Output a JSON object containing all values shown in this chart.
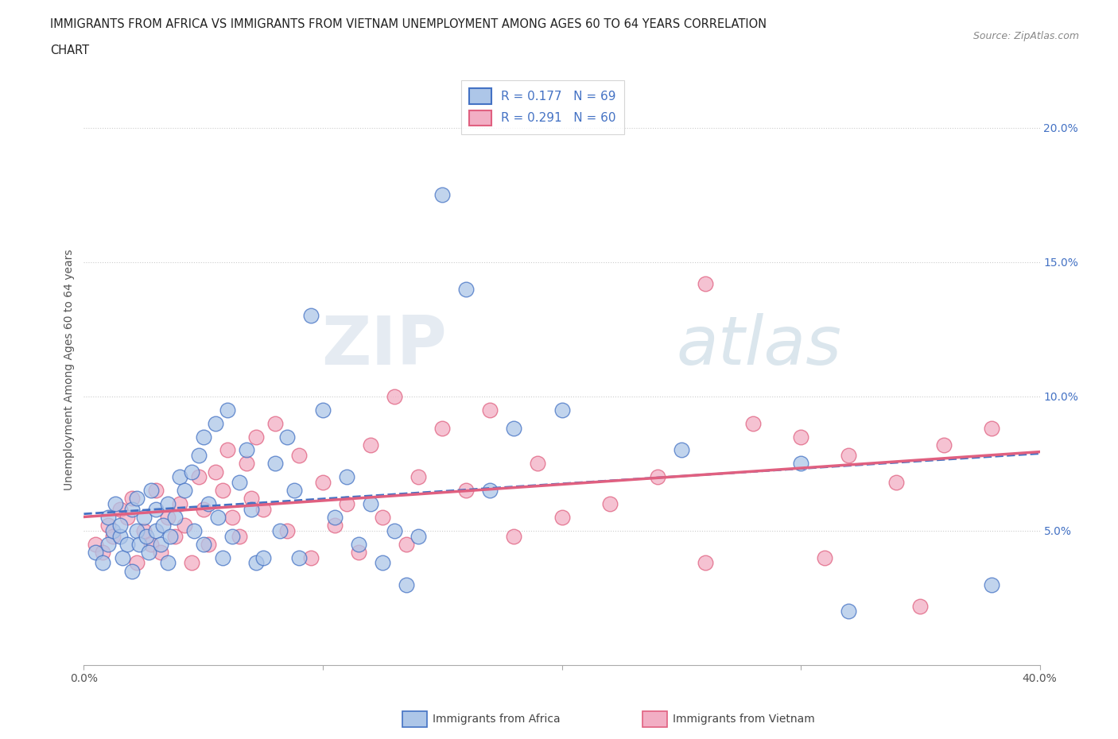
{
  "title_line1": "IMMIGRANTS FROM AFRICA VS IMMIGRANTS FROM VIETNAM UNEMPLOYMENT AMONG AGES 60 TO 64 YEARS CORRELATION",
  "title_line2": "CHART",
  "source": "Source: ZipAtlas.com",
  "ylabel": "Unemployment Among Ages 60 to 64 years",
  "xlim": [
    0.0,
    0.4
  ],
  "ylim": [
    0.0,
    0.22
  ],
  "africa_R": 0.177,
  "africa_N": 69,
  "vietnam_R": 0.291,
  "vietnam_N": 60,
  "africa_color": "#adc6e8",
  "vietnam_color": "#f2aec4",
  "africa_line_color": "#4472c4",
  "vietnam_line_color": "#e06080",
  "watermark_zip": "ZIP",
  "watermark_atlas": "atlas",
  "africa_x": [
    0.005,
    0.008,
    0.01,
    0.01,
    0.012,
    0.013,
    0.015,
    0.015,
    0.016,
    0.018,
    0.02,
    0.02,
    0.022,
    0.022,
    0.023,
    0.025,
    0.026,
    0.027,
    0.028,
    0.03,
    0.03,
    0.032,
    0.033,
    0.035,
    0.035,
    0.036,
    0.038,
    0.04,
    0.042,
    0.045,
    0.046,
    0.048,
    0.05,
    0.05,
    0.052,
    0.055,
    0.056,
    0.058,
    0.06,
    0.062,
    0.065,
    0.068,
    0.07,
    0.072,
    0.075,
    0.08,
    0.082,
    0.085,
    0.088,
    0.09,
    0.095,
    0.1,
    0.105,
    0.11,
    0.115,
    0.12,
    0.125,
    0.13,
    0.135,
    0.14,
    0.15,
    0.16,
    0.17,
    0.18,
    0.2,
    0.25,
    0.3,
    0.32,
    0.38
  ],
  "africa_y": [
    0.042,
    0.038,
    0.055,
    0.045,
    0.05,
    0.06,
    0.048,
    0.052,
    0.04,
    0.045,
    0.058,
    0.035,
    0.05,
    0.062,
    0.045,
    0.055,
    0.048,
    0.042,
    0.065,
    0.05,
    0.058,
    0.045,
    0.052,
    0.06,
    0.038,
    0.048,
    0.055,
    0.07,
    0.065,
    0.072,
    0.05,
    0.078,
    0.045,
    0.085,
    0.06,
    0.09,
    0.055,
    0.04,
    0.095,
    0.048,
    0.068,
    0.08,
    0.058,
    0.038,
    0.04,
    0.075,
    0.05,
    0.085,
    0.065,
    0.04,
    0.13,
    0.095,
    0.055,
    0.07,
    0.045,
    0.06,
    0.038,
    0.05,
    0.03,
    0.048,
    0.175,
    0.14,
    0.065,
    0.088,
    0.095,
    0.08,
    0.075,
    0.02,
    0.03
  ],
  "vietnam_x": [
    0.005,
    0.008,
    0.01,
    0.012,
    0.015,
    0.018,
    0.02,
    0.022,
    0.025,
    0.028,
    0.03,
    0.032,
    0.035,
    0.038,
    0.04,
    0.042,
    0.045,
    0.048,
    0.05,
    0.052,
    0.055,
    0.058,
    0.06,
    0.062,
    0.065,
    0.068,
    0.07,
    0.072,
    0.075,
    0.08,
    0.085,
    0.09,
    0.095,
    0.1,
    0.105,
    0.11,
    0.115,
    0.12,
    0.125,
    0.13,
    0.135,
    0.14,
    0.15,
    0.16,
    0.17,
    0.18,
    0.19,
    0.2,
    0.22,
    0.24,
    0.26,
    0.28,
    0.3,
    0.32,
    0.34,
    0.36,
    0.38,
    0.26,
    0.31,
    0.35
  ],
  "vietnam_y": [
    0.045,
    0.042,
    0.052,
    0.048,
    0.058,
    0.055,
    0.062,
    0.038,
    0.05,
    0.045,
    0.065,
    0.042,
    0.055,
    0.048,
    0.06,
    0.052,
    0.038,
    0.07,
    0.058,
    0.045,
    0.072,
    0.065,
    0.08,
    0.055,
    0.048,
    0.075,
    0.062,
    0.085,
    0.058,
    0.09,
    0.05,
    0.078,
    0.04,
    0.068,
    0.052,
    0.06,
    0.042,
    0.082,
    0.055,
    0.1,
    0.045,
    0.07,
    0.088,
    0.065,
    0.095,
    0.048,
    0.075,
    0.055,
    0.06,
    0.07,
    0.038,
    0.09,
    0.085,
    0.078,
    0.068,
    0.082,
    0.088,
    0.142,
    0.04,
    0.022
  ]
}
